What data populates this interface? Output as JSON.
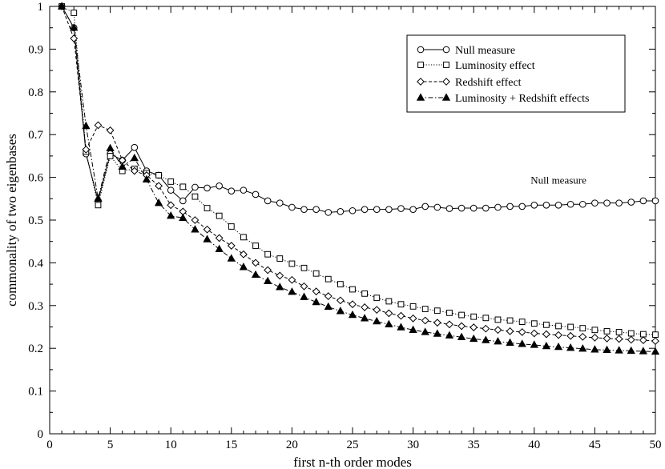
{
  "chart_data": {
    "type": "line",
    "title": "",
    "xlabel": "first n-th order modes",
    "ylabel": "commonality of two eigenbases",
    "xlim": [
      0,
      50
    ],
    "ylim": [
      0,
      1
    ],
    "xticks": [
      0,
      5,
      10,
      15,
      20,
      25,
      30,
      35,
      40,
      45,
      50
    ],
    "yticks": [
      0,
      0.1,
      0.2,
      0.3,
      0.4,
      0.5,
      0.6,
      0.7,
      0.8,
      0.9,
      1
    ],
    "grid": false,
    "legend_position": "top-right",
    "annotations": [
      {
        "text": "Null measure",
        "x": 42,
        "y": 0.585
      }
    ],
    "x": [
      1,
      2,
      3,
      4,
      5,
      6,
      7,
      8,
      9,
      10,
      11,
      12,
      13,
      14,
      15,
      16,
      17,
      18,
      19,
      20,
      21,
      22,
      23,
      24,
      25,
      26,
      27,
      28,
      29,
      30,
      31,
      32,
      33,
      34,
      35,
      36,
      37,
      38,
      39,
      40,
      41,
      42,
      43,
      44,
      45,
      46,
      47,
      48,
      49,
      50
    ],
    "series": [
      {
        "name": "Null measure",
        "marker": "circle-open",
        "dash": "solid",
        "color": "#000000",
        "values": [
          1.0,
          0.95,
          0.655,
          0.545,
          0.655,
          0.64,
          0.67,
          0.615,
          0.605,
          0.57,
          0.545,
          0.577,
          0.575,
          0.58,
          0.568,
          0.57,
          0.56,
          0.545,
          0.54,
          0.53,
          0.525,
          0.525,
          0.518,
          0.52,
          0.522,
          0.525,
          0.525,
          0.525,
          0.527,
          0.525,
          0.532,
          0.53,
          0.527,
          0.528,
          0.528,
          0.528,
          0.53,
          0.532,
          0.532,
          0.535,
          0.535,
          0.535,
          0.537,
          0.537,
          0.54,
          0.54,
          0.54,
          0.542,
          0.545,
          0.545
        ]
      },
      {
        "name": "Luminosity effect",
        "marker": "square-open",
        "dash": "dotted",
        "color": "#000000",
        "values": [
          1.0,
          0.985,
          0.66,
          0.535,
          0.65,
          0.615,
          0.62,
          0.61,
          0.605,
          0.59,
          0.578,
          0.555,
          0.528,
          0.51,
          0.485,
          0.46,
          0.44,
          0.42,
          0.41,
          0.398,
          0.388,
          0.375,
          0.362,
          0.35,
          0.338,
          0.328,
          0.318,
          0.31,
          0.303,
          0.298,
          0.292,
          0.288,
          0.283,
          0.278,
          0.274,
          0.271,
          0.267,
          0.265,
          0.262,
          0.258,
          0.255,
          0.252,
          0.25,
          0.247,
          0.243,
          0.24,
          0.238,
          0.235,
          0.233,
          0.232
        ]
      },
      {
        "name": "Redshift effect",
        "marker": "diamond-open",
        "dash": "dashed",
        "color": "#000000",
        "values": [
          1.0,
          0.925,
          0.665,
          0.722,
          0.71,
          0.64,
          0.615,
          0.605,
          0.58,
          0.535,
          0.52,
          0.5,
          0.478,
          0.458,
          0.44,
          0.42,
          0.4,
          0.383,
          0.37,
          0.36,
          0.345,
          0.333,
          0.322,
          0.312,
          0.303,
          0.296,
          0.29,
          0.282,
          0.276,
          0.27,
          0.265,
          0.26,
          0.256,
          0.252,
          0.249,
          0.246,
          0.243,
          0.24,
          0.238,
          0.235,
          0.233,
          0.231,
          0.229,
          0.227,
          0.225,
          0.223,
          0.222,
          0.22,
          0.219,
          0.217
        ]
      },
      {
        "name": "Luminosity + Redshift effects",
        "marker": "triangle-filled",
        "dash": "dashdot",
        "color": "#000000",
        "values": [
          1.0,
          0.95,
          0.72,
          0.55,
          0.668,
          0.625,
          0.645,
          0.595,
          0.54,
          0.51,
          0.505,
          0.478,
          0.455,
          0.432,
          0.41,
          0.39,
          0.372,
          0.357,
          0.343,
          0.332,
          0.32,
          0.308,
          0.297,
          0.287,
          0.278,
          0.27,
          0.263,
          0.256,
          0.249,
          0.243,
          0.238,
          0.234,
          0.23,
          0.226,
          0.222,
          0.219,
          0.216,
          0.213,
          0.21,
          0.208,
          0.205,
          0.203,
          0.201,
          0.199,
          0.197,
          0.196,
          0.195,
          0.194,
          0.193,
          0.192
        ]
      }
    ]
  }
}
